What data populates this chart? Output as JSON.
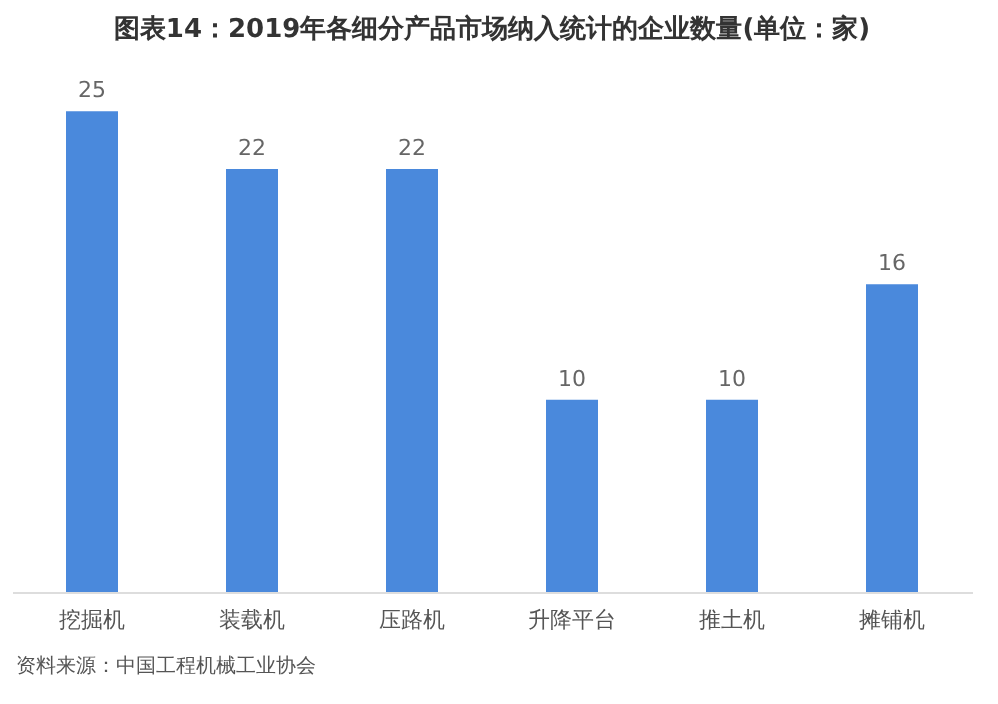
{
  "chart_data": {
    "type": "bar",
    "title": "图表14：2019年各细分产品市场纳入统计的企业数量(单位：家)",
    "categories": [
      "挖掘机",
      "装载机",
      "压路机",
      "升降平台",
      "推土机",
      "摊铺机"
    ],
    "values": [
      25,
      22,
      22,
      10,
      10,
      16
    ],
    "color": "#4a89dc",
    "data_labels": true,
    "grid": false,
    "annotations": [
      "资料来源：中国工程机械工业协会"
    ]
  }
}
